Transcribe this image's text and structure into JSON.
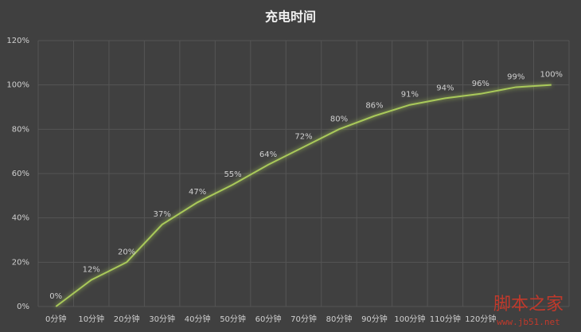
{
  "chart_data": {
    "type": "line",
    "title": "充电时间",
    "categories": [
      "0分钟",
      "10分钟",
      "20分钟",
      "30分钟",
      "40分钟",
      "50分钟",
      "60分钟",
      "70分钟",
      "80分钟",
      "90分钟",
      "100分钟",
      "110分钟",
      "120分钟",
      null,
      null
    ],
    "values": [
      0,
      12,
      20,
      37,
      47,
      55,
      64,
      72,
      80,
      86,
      91,
      94,
      96,
      99,
      100
    ],
    "value_labels": [
      "0%",
      "12%",
      "20%",
      "37%",
      "47%",
      "55%",
      "64%",
      "72%",
      "80%",
      "86%",
      "91%",
      "94%",
      "96%",
      "99%",
      "100%"
    ],
    "color": "#a9c95a",
    "ylim": [
      0,
      120
    ],
    "yticks": [
      {
        "value": 0,
        "label": "0%"
      },
      {
        "value": 20,
        "label": "20%"
      },
      {
        "value": 40,
        "label": "40%"
      },
      {
        "value": 60,
        "label": "60%"
      },
      {
        "value": 80,
        "label": "80%"
      },
      {
        "value": 100,
        "label": "100%"
      },
      {
        "value": 120,
        "label": "120%"
      }
    ],
    "grid": true,
    "watermark": [
      "脚本之家",
      "www.jb51.net"
    ]
  }
}
